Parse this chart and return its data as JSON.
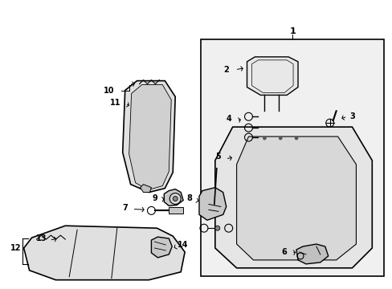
{
  "bg_color": "#ffffff",
  "line_color": "#000000",
  "fill_light": "#f5f5f5",
  "fill_gray": "#e0e0e0",
  "fill_med": "#d0d0d0",
  "figsize": [
    4.89,
    3.6
  ],
  "dpi": 100
}
